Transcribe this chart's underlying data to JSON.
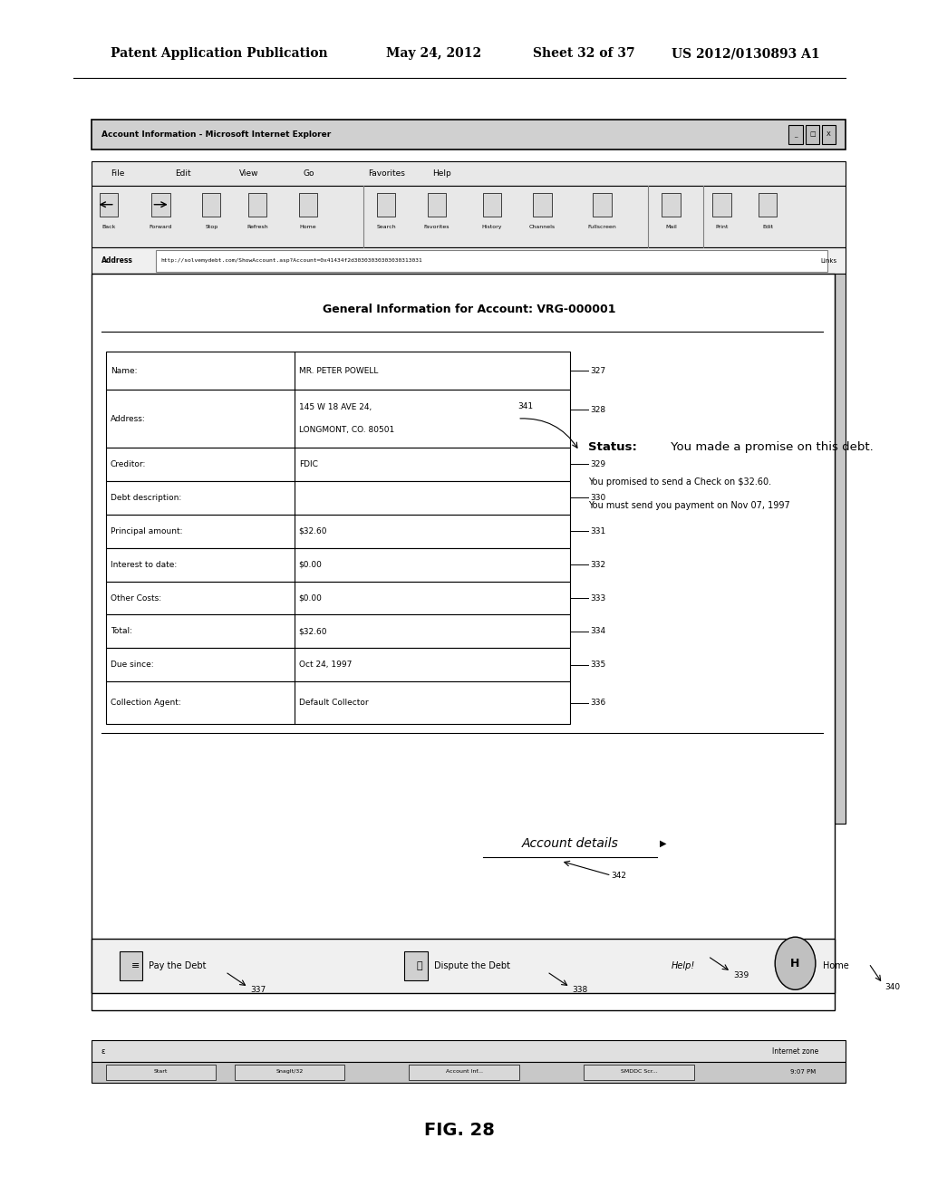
{
  "bg_color": "#ffffff",
  "header_line1": "Patent Application Publication",
  "header_date": "May 24, 2012",
  "header_sheet": "Sheet 32 of 37",
  "header_patent": "US 2012/0130893 A1",
  "figure_label": "FIG. 28",
  "browser_title": "Account Information - Microsoft Internet Explorer",
  "menu_items": [
    "File",
    "Edit",
    "View",
    "Go",
    "Favorites",
    "Help"
  ],
  "toolbar_buttons": [
    "Back",
    "Forward",
    "Stop",
    "Refresh",
    "Home",
    "Search",
    "Favorites",
    "History",
    "Channels",
    "Fullscreen",
    "Mail",
    "Print",
    "Edit"
  ],
  "address_bar": "http://solvemydebt.com/ShowAccount.asp?Account=0x41434f2d30303030303030313031",
  "page_title": "General Information for Account: VRG-000001",
  "table_data": [
    [
      "Name:",
      "MR. PETER POWELL"
    ],
    [
      "Address:",
      "145 W 18 AVE 24,\nLONGMONT, CO. 80501"
    ],
    [
      "Creditor:",
      "FDIC"
    ],
    [
      "Debt description:",
      ""
    ],
    [
      "Principal amount:",
      "$32.60"
    ],
    [
      "Interest to date:",
      "$0.00"
    ],
    [
      "Other Costs:",
      "$0.00"
    ],
    [
      "Total:",
      "$32.60"
    ],
    [
      "Due since:",
      "Oct 24, 1997"
    ],
    [
      "Collection Agent:",
      "Default Collector"
    ]
  ],
  "status_bold": "Status:",
  "status_text": " You made a promise on this debt.",
  "status_line2": "You promised to send a Check on $32.60.",
  "status_line3": "You must send you payment on Nov 07, 1997",
  "account_details_label": "Account details",
  "bottom_buttons": [
    "Pay the Debt",
    "Dispute the Debt",
    "Help!",
    "Home"
  ],
  "statusbar_text": "Internet zone",
  "taskbar_time": "9:07 PM",
  "taskbar_items": [
    "Start",
    "SnagIt/32",
    "Account Inf...",
    "SMDDC Scr..."
  ]
}
